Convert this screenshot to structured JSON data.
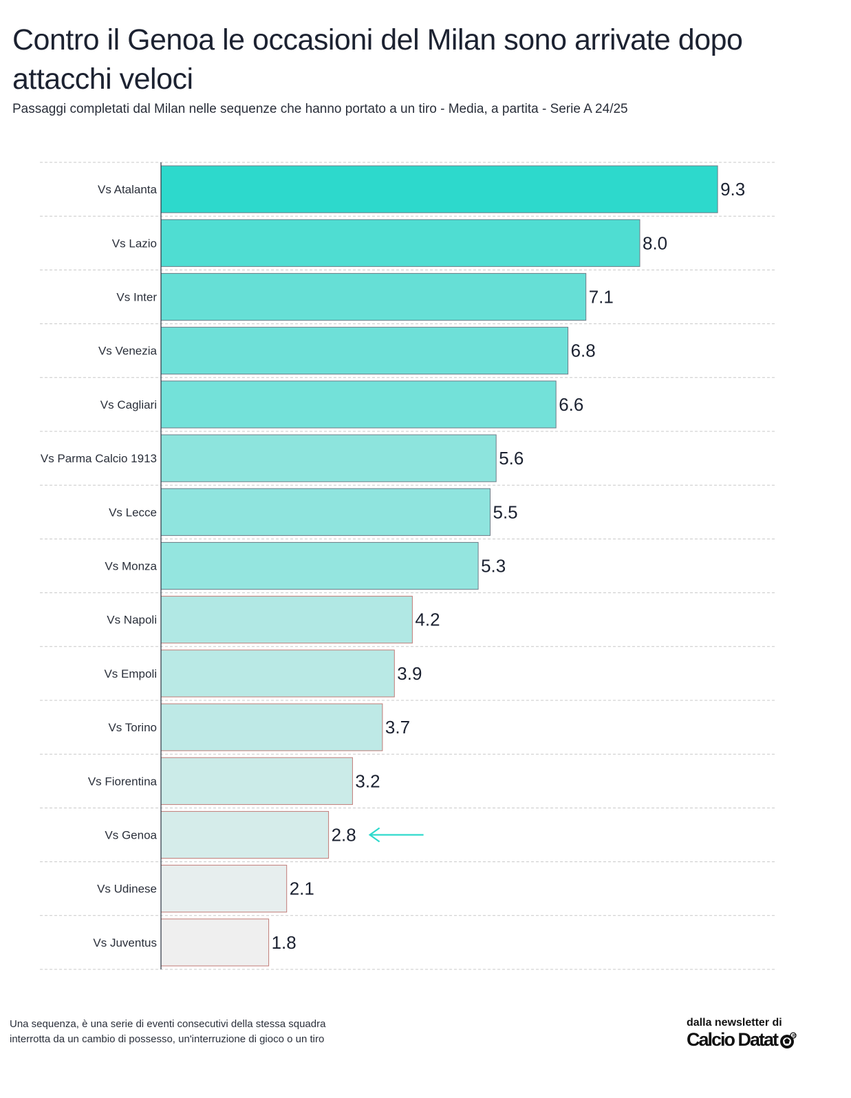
{
  "chart_data": {
    "type": "bar",
    "orientation": "horizontal",
    "title": "Contro il Genoa le occasioni del Milan sono arrivate dopo attacchi veloci",
    "subtitle": "Passaggi completati dal Milan nelle sequenze che hanno portato a un tiro - Media, a partita - Serie A 24/25",
    "categories": [
      "Vs Atalanta",
      "Vs Lazio",
      "Vs Inter",
      "Vs Venezia",
      "Vs Cagliari",
      "Vs Parma Calcio 1913",
      "Vs Lecce",
      "Vs Monza",
      "Vs Napoli",
      "Vs Empoli",
      "Vs Torino",
      "Vs Fiorentina",
      "Vs Genoa",
      "Vs Udinese",
      "Vs Juventus"
    ],
    "values": [
      9.3,
      8.0,
      7.1,
      6.8,
      6.6,
      5.6,
      5.5,
      5.3,
      4.2,
      3.9,
      3.7,
      3.2,
      2.8,
      2.1,
      1.8
    ],
    "value_labels": [
      "9.3",
      "8.0",
      "7.1",
      "6.8",
      "6.6",
      "5.6",
      "5.5",
      "5.3",
      "4.2",
      "3.9",
      "3.7",
      "3.2",
      "2.8",
      "2.1",
      "1.8"
    ],
    "xlim": [
      0,
      10.2
    ],
    "grid": "horizontal dashed separators",
    "highlight": "Vs Genoa",
    "color_scale": {
      "high": "#2dd9cc",
      "low": "#efefef"
    },
    "bar_outline_low": "#c07a76",
    "arrow_color": "#2dd9cc"
  },
  "footnote": {
    "line1": "Una sequenza, è una serie di eventi consecutivi della stessa squadra",
    "line2": "interrotta da un cambio di possesso, un'interruzione di gioco o un tiro"
  },
  "brand": {
    "caption": "dalla newsletter di",
    "name": "Calcio Datat"
  }
}
